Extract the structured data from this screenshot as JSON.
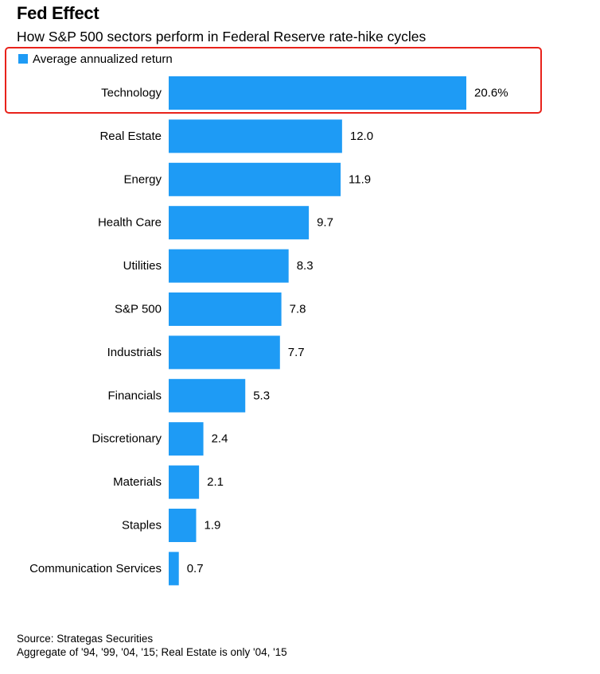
{
  "header": {
    "title": "Fed Effect",
    "subtitle": "How S&P 500 sectors perform in Federal Reserve rate-hike cycles"
  },
  "colors": {
    "bar": "#1e9bf5",
    "highlight": "#e8221b",
    "text": "#000000"
  },
  "chart_data": {
    "type": "bar",
    "orientation": "horizontal",
    "categories": [
      "Technology",
      "Real Estate",
      "Energy",
      "Health Care",
      "Utilities",
      "S&P 500",
      "Industrials",
      "Financials",
      "Discretionary",
      "Materials",
      "Staples",
      "Communication Services"
    ],
    "series": [
      {
        "name": "Average annualized return",
        "values": [
          20.6,
          12.0,
          11.9,
          9.7,
          8.3,
          7.8,
          7.7,
          5.3,
          2.4,
          2.1,
          1.9,
          0.7
        ]
      }
    ],
    "value_labels": [
      "20.6%",
      "12.0",
      "11.9",
      "9.7",
      "8.3",
      "7.8",
      "7.7",
      "5.3",
      "2.4",
      "2.1",
      "1.9",
      "0.7"
    ],
    "title": "Fed Effect",
    "subtitle": "How S&P 500 sectors perform in Federal Reserve rate-hike cycles",
    "xlabel": "",
    "ylabel": "",
    "xlim": [
      0,
      20.6
    ],
    "grid": false,
    "legend": "top-left",
    "highlighted_category": "Technology"
  },
  "footer": {
    "source": "Source: Strategas Securities",
    "note": "Aggregate of '94, '99, '04, '15; Real Estate is only '04, '15"
  }
}
